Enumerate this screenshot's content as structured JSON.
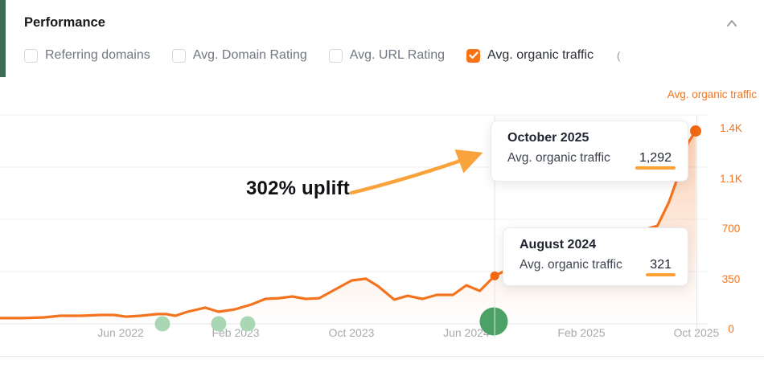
{
  "header": {
    "title": "Performance"
  },
  "metrics": {
    "items": [
      {
        "label": "Referring domains",
        "checked": false
      },
      {
        "label": "Avg. Domain Rating",
        "checked": false
      },
      {
        "label": "Avg. URL Rating",
        "checked": false
      },
      {
        "label": "Avg. organic traffic",
        "checked": true
      }
    ],
    "truncated_suffix": "("
  },
  "annotation": {
    "text": "302% uplift"
  },
  "tooltips": [
    {
      "title": "October 2025",
      "metric": "Avg. organic traffic",
      "value": "1,292"
    },
    {
      "title": "August 2024",
      "metric": "Avg. organic traffic",
      "value": "321"
    }
  ],
  "colors": {
    "line_orange": "#f4731f",
    "dot_orange": "#f2690f",
    "label_orange": "#f97316",
    "arrow_orange": "#f9a33c",
    "underline_orange": "#ffa235",
    "accent_green": "#3e6b51",
    "milestone_green_large": "#4ca266",
    "milestone_green_small": "#aad7b3",
    "grid_gray": "#eef0f2",
    "axis_gray": "#e3e5e8",
    "tick_text_gray": "#a6a9ad"
  },
  "chart_data": {
    "type": "line",
    "title": "Avg. organic traffic",
    "ylabel": "Avg. organic traffic",
    "ylim": [
      0,
      1400
    ],
    "grid": "horizontal",
    "legend_position": "top-right",
    "y_ticks": [
      {
        "label": "1.4K",
        "value": 1400
      },
      {
        "label": "1.1K",
        "value": 1050
      },
      {
        "label": "700",
        "value": 700
      },
      {
        "label": "350",
        "value": 350
      },
      {
        "label": "0",
        "value": 0
      }
    ],
    "x_ticks": [
      {
        "label": "Jun 2022",
        "pos": 0.1705
      },
      {
        "label": "Feb 2023",
        "pos": 0.333
      },
      {
        "label": "Oct 2023",
        "pos": 0.4966
      },
      {
        "label": "Jun 2024",
        "pos": 0.659
      },
      {
        "label": "Feb 2025",
        "pos": 0.8216
      },
      {
        "label": "Oct 2025",
        "pos": 0.984
      }
    ],
    "series": [
      {
        "name": "Avg. organic traffic",
        "points": [
          [
            0.0,
            38
          ],
          [
            0.032,
            38
          ],
          [
            0.063,
            43
          ],
          [
            0.085,
            54
          ],
          [
            0.114,
            54
          ],
          [
            0.142,
            59
          ],
          [
            0.161,
            59
          ],
          [
            0.178,
            48
          ],
          [
            0.199,
            54
          ],
          [
            0.222,
            65
          ],
          [
            0.235,
            65
          ],
          [
            0.248,
            54
          ],
          [
            0.265,
            81
          ],
          [
            0.29,
            108
          ],
          [
            0.309,
            81
          ],
          [
            0.332,
            97
          ],
          [
            0.355,
            129
          ],
          [
            0.375,
            167
          ],
          [
            0.394,
            172
          ],
          [
            0.413,
            183
          ],
          [
            0.432,
            167
          ],
          [
            0.451,
            172
          ],
          [
            0.472,
            226
          ],
          [
            0.497,
            291
          ],
          [
            0.517,
            302
          ],
          [
            0.534,
            253
          ],
          [
            0.557,
            162
          ],
          [
            0.576,
            188
          ],
          [
            0.597,
            167
          ],
          [
            0.617,
            194
          ],
          [
            0.64,
            194
          ],
          [
            0.659,
            258
          ],
          [
            0.678,
            221
          ],
          [
            0.699,
            321
          ],
          [
            0.727,
            388
          ],
          [
            0.773,
            458
          ],
          [
            0.818,
            522
          ],
          [
            0.864,
            576
          ],
          [
            0.898,
            614
          ],
          [
            0.929,
            657
          ],
          [
            0.945,
            813
          ],
          [
            0.958,
            985
          ],
          [
            0.972,
            1211
          ],
          [
            0.983,
            1292
          ]
        ]
      }
    ],
    "highlight_points": [
      {
        "x": 0.699,
        "value": 321,
        "label": "August 2024"
      },
      {
        "x": 0.983,
        "value": 1292,
        "label": "October 2025"
      }
    ],
    "milestones_small": [
      0.2295,
      0.309,
      0.35
    ],
    "milestone_large": 0.6977,
    "crosshairs": [
      0.699,
      0.9847
    ]
  }
}
